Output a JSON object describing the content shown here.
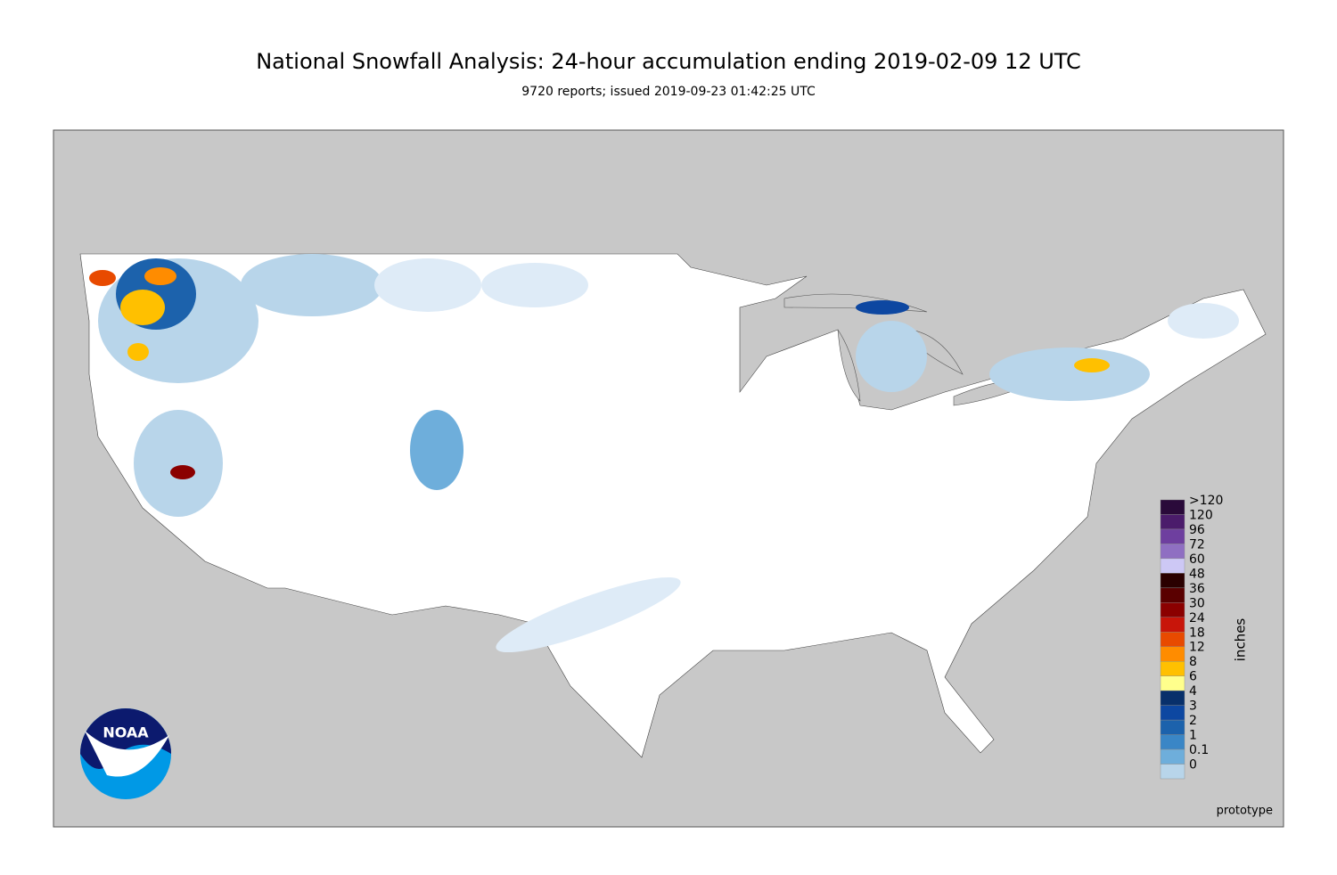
{
  "header": {
    "title": "National Snowfall Analysis: 24-hour accumulation ending 2019-02-09 12 UTC",
    "subtitle": "9720 reports; issued 2019-09-23 01:42:25 UTC"
  },
  "legend": {
    "unit": "inches",
    "levels": [
      {
        "label": ">120",
        "color": "#2a0a3a"
      },
      {
        "label": "120",
        "color": "#4b1c6b"
      },
      {
        "label": "96",
        "color": "#6e3f9f"
      },
      {
        "label": "72",
        "color": "#8f6fc2"
      },
      {
        "label": "60",
        "color": "#cdc8f5"
      },
      {
        "label": "48",
        "color": "#2a0000"
      },
      {
        "label": "36",
        "color": "#5a0000"
      },
      {
        "label": "30",
        "color": "#8b0000"
      },
      {
        "label": "24",
        "color": "#c8150a"
      },
      {
        "label": "18",
        "color": "#e84a00"
      },
      {
        "label": "12",
        "color": "#ff8c00"
      },
      {
        "label": "8",
        "color": "#ffc000"
      },
      {
        "label": "6",
        "color": "#ffff8c"
      },
      {
        "label": "4",
        "color": "#08306b"
      },
      {
        "label": "3",
        "color": "#0d47a1"
      },
      {
        "label": "2",
        "color": "#1c62ac"
      },
      {
        "label": "1",
        "color": "#3a86c6"
      },
      {
        "label": "0.1",
        "color": "#6eaedb"
      },
      {
        "label": "0",
        "color": "#b8d5ea"
      }
    ]
  },
  "logo": {
    "text": "NOAA"
  },
  "footer": {
    "note": "prototype"
  }
}
